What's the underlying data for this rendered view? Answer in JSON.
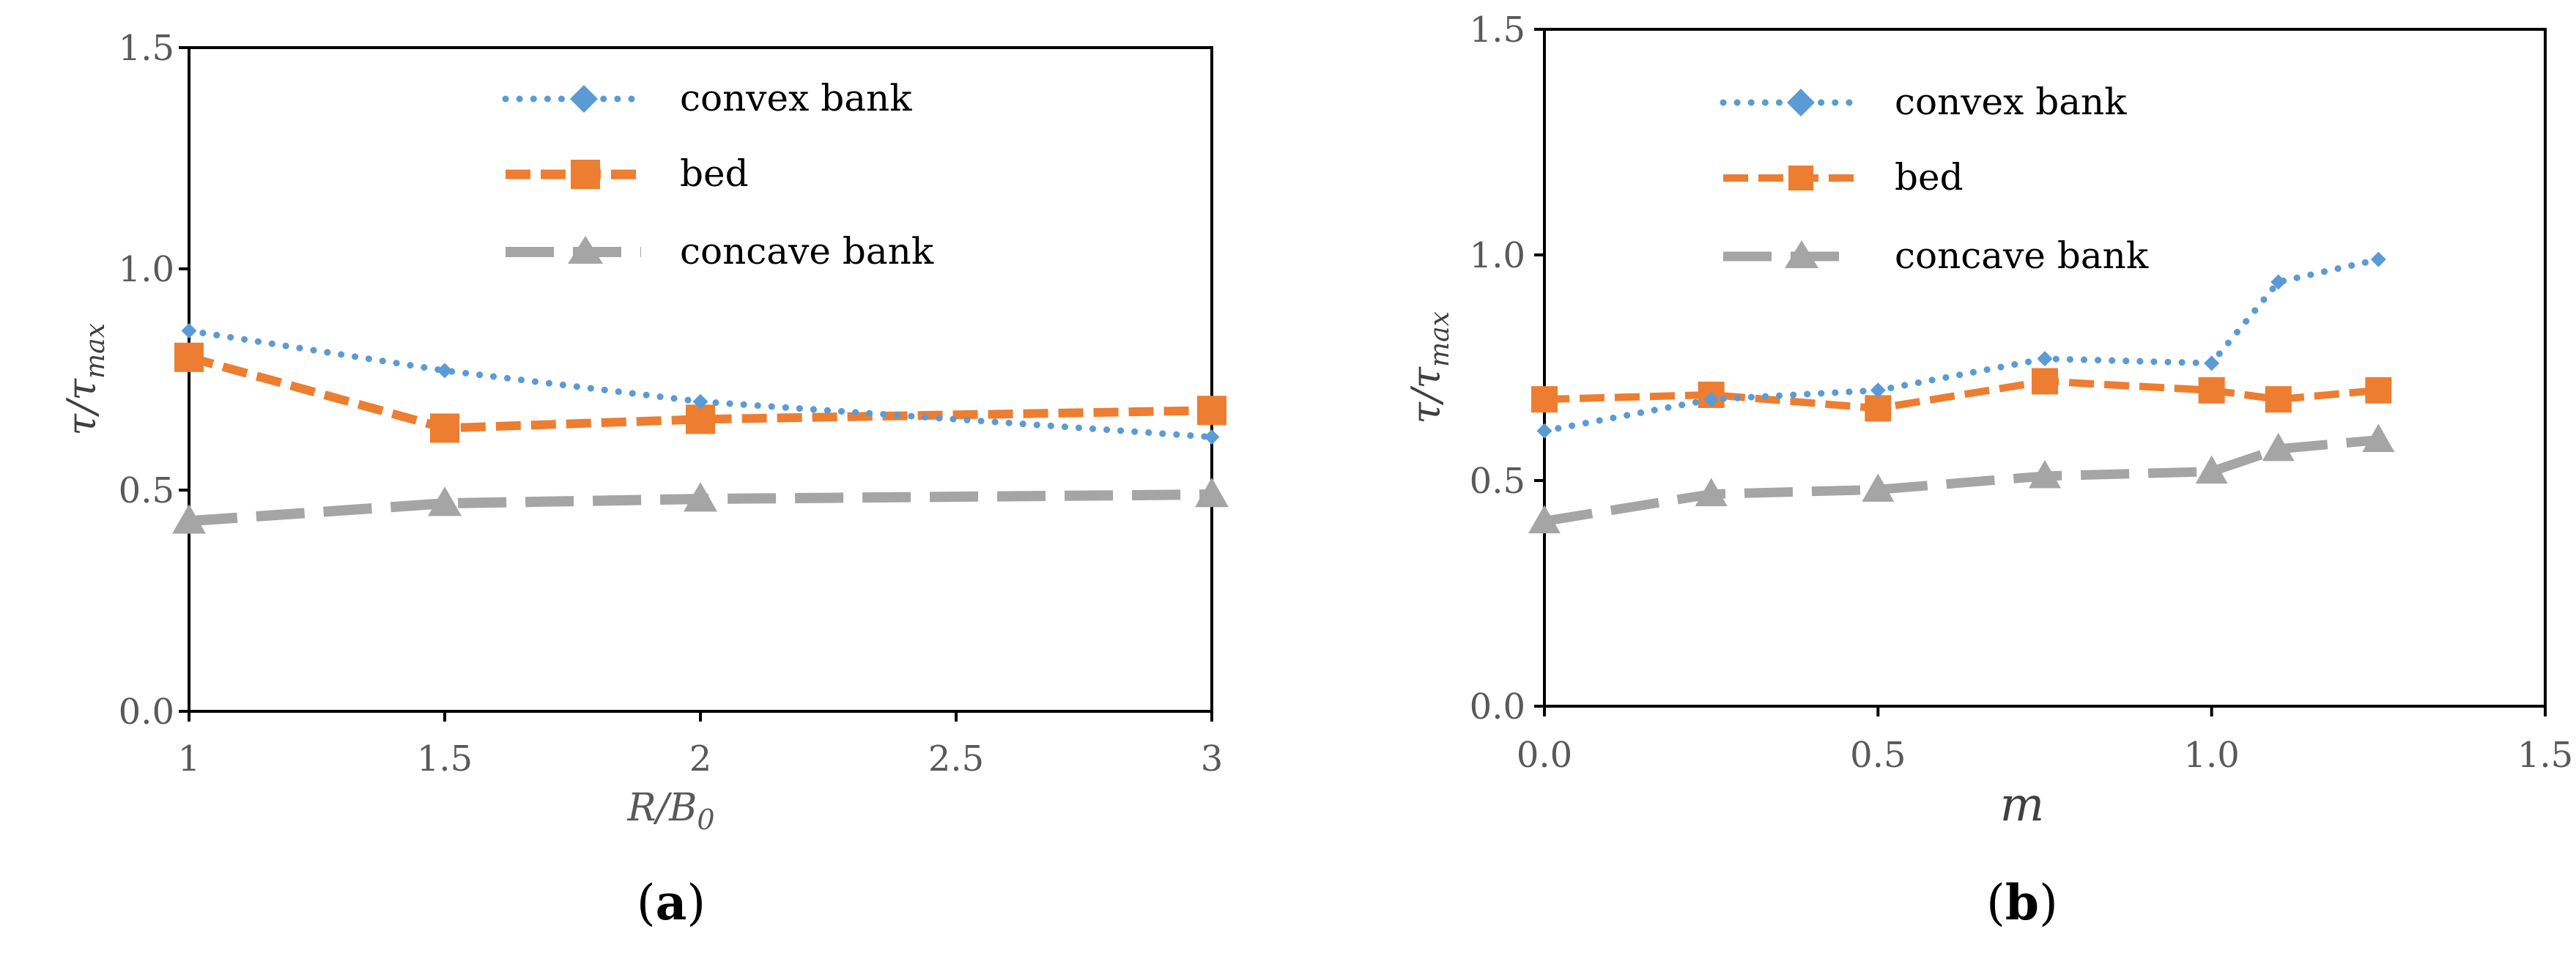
{
  "colors": {
    "convex": "#5B9BD5",
    "bed": "#ED7D31",
    "concave": "#A5A5A5",
    "axis": "#000000",
    "tick_text": "#595959"
  },
  "chart_data": [
    {
      "type": "line",
      "caption": {
        "open": "(",
        "letter": "a",
        "close": ")"
      },
      "ylabel": "τ/τ",
      "ylabel_sub": "max",
      "xlabel": "R/B",
      "xlabel_sub": "0",
      "xlim": [
        1,
        3
      ],
      "ylim": [
        0,
        1.5
      ],
      "xticks": [
        1,
        1.5,
        2,
        2.5,
        3
      ],
      "xtick_labels": [
        "1",
        "1.5",
        "2",
        "2.5",
        "3"
      ],
      "yticks": [
        0,
        0.5,
        1,
        1.5
      ],
      "ytick_labels": [
        "0.0",
        "0.5",
        "1.0",
        "1.5"
      ],
      "grid": false,
      "legend_position": "top-center",
      "series": [
        {
          "name": "convex bank",
          "key": "convex",
          "marker": "diamond",
          "line": "dotted",
          "x": [
            1,
            1.5,
            2,
            3
          ],
          "y": [
            0.86,
            0.77,
            0.7,
            0.62
          ]
        },
        {
          "name": "bed",
          "key": "bed",
          "marker": "square",
          "line": "dashed",
          "x": [
            1,
            1.5,
            2,
            3
          ],
          "y": [
            0.8,
            0.64,
            0.66,
            0.68
          ]
        },
        {
          "name": "concave bank",
          "key": "concave",
          "marker": "triangle",
          "line": "long-dashed",
          "x": [
            1,
            1.5,
            2,
            3
          ],
          "y": [
            0.43,
            0.47,
            0.48,
            0.49
          ]
        }
      ]
    },
    {
      "type": "line",
      "caption": {
        "open": "(",
        "letter": "b",
        "close": ")"
      },
      "ylabel": "τ/τ",
      "ylabel_sub": "max",
      "xlabel": "m",
      "xlabel_sub": "",
      "xlim": [
        0,
        1.5
      ],
      "ylim": [
        0,
        1.5
      ],
      "xticks": [
        0,
        0.5,
        1,
        1.5
      ],
      "xtick_labels": [
        "0.0",
        "0.5",
        "1.0",
        "1.5"
      ],
      "yticks": [
        0,
        0.5,
        1,
        1.5
      ],
      "ytick_labels": [
        "0.0",
        "0.5",
        "1.0",
        "1.5"
      ],
      "grid": false,
      "legend_position": "top-center",
      "series": [
        {
          "name": "convex bank",
          "key": "convex",
          "marker": "diamond",
          "line": "dotted",
          "x": [
            0,
            0.25,
            0.5,
            0.75,
            1.0,
            1.1,
            1.25
          ],
          "y": [
            0.61,
            0.68,
            0.7,
            0.77,
            0.76,
            0.94,
            0.99
          ]
        },
        {
          "name": "bed",
          "key": "bed",
          "marker": "square",
          "line": "dashed",
          "x": [
            0,
            0.25,
            0.5,
            0.75,
            1.0,
            1.1,
            1.25
          ],
          "y": [
            0.68,
            0.69,
            0.66,
            0.72,
            0.7,
            0.68,
            0.7
          ]
        },
        {
          "name": "concave bank",
          "key": "concave",
          "marker": "triangle",
          "line": "long-dashed",
          "x": [
            0,
            0.25,
            0.5,
            0.75,
            1.0,
            1.1,
            1.25
          ],
          "y": [
            0.41,
            0.47,
            0.48,
            0.51,
            0.52,
            0.57,
            0.59
          ]
        }
      ]
    }
  ]
}
